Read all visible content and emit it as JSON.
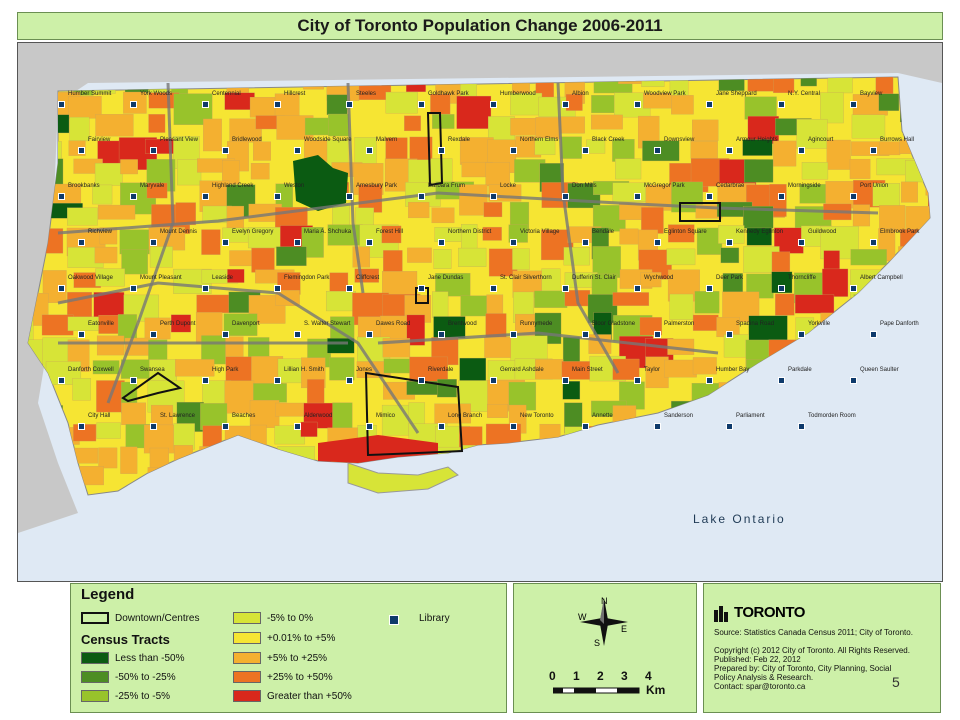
{
  "title": "City of Toronto Population Change 2006-2011",
  "lake_label": "Lake Ontario",
  "legend": {
    "heading": "Legend",
    "census_heading": "Census Tracts",
    "downtown": "Downtown/Centres",
    "library": "Library",
    "classes": [
      {
        "label": "Less than -50%",
        "color": "#0b5b12"
      },
      {
        "label": "-50% to -25%",
        "color": "#4d8d23"
      },
      {
        "label": "-25% to -5%",
        "color": "#98c32b"
      },
      {
        "label": "-5% to 0%",
        "color": "#d7e437"
      },
      {
        "label": "+0.01% to +5%",
        "color": "#f6e533"
      },
      {
        "label": "+5% to +25%",
        "color": "#f4b030"
      },
      {
        "label": "+25% to +50%",
        "color": "#ed7323"
      },
      {
        "label": "Greater than +50%",
        "color": "#d9281c"
      }
    ]
  },
  "compass": {
    "n": "N",
    "e": "E",
    "s": "S",
    "w": "W"
  },
  "scale": {
    "ticks": "0 1 2 3 4",
    "unit": "Km"
  },
  "info": {
    "brand": "TORONTO",
    "source": "Source: Statistics Canada Census 2011; City of Toronto.",
    "copyright": "Copyright (c) 2012 City of Toronto. All Rights Reserved.",
    "published": "Published: Feb 22, 2012",
    "prepared_1": "Prepared by: City of Toronto, City Planning, Social",
    "prepared_2": "Policy Analysis & Research.",
    "contact": "Contact: spar@toronto.ca"
  },
  "page_number": "5",
  "place_labels": [
    "Humber Summit",
    "York Woods",
    "Centennial",
    "Hillcrest",
    "Steeles",
    "Goldhawk Park",
    "Humberwood",
    "Albion",
    "Woodview Park",
    "Jane Sheppard",
    "N.Y. Central",
    "Bayview",
    "Fairview",
    "Pleasant View",
    "Bridlewood",
    "Woodside Square",
    "Malvern",
    "Rexdale",
    "Northern Elms",
    "Black Creek",
    "Downsview",
    "Armour Heights",
    "Agincourt",
    "Burrows Hall",
    "Brookbanks",
    "Maryvale",
    "Highland Creek",
    "Weston",
    "Amesbury Park",
    "Barbara Frum",
    "Locke",
    "Don Mills",
    "McGregor Park",
    "Cedarbrae",
    "Morningside",
    "Port Union",
    "Richview",
    "Mount Dennis",
    "Evelyn Gregory",
    "Maria A. Shchuka",
    "Forest Hill",
    "Northern District",
    "Victoria Village",
    "Bendale",
    "Eglinton Square",
    "Kennedy Eglinton",
    "Guildwood",
    "Elmbrook Park",
    "Oakwood Village",
    "Mount Pleasant",
    "Leaside",
    "Flemingdon Park",
    "Cliffcrest",
    "Jane Dundas",
    "St. Clair Silverthorn",
    "Dufferin St. Clair",
    "Wychwood",
    "Deer Park",
    "Thorncliffe",
    "Albert Campbell",
    "Eatonville",
    "Perth Dupont",
    "Davenport",
    "S. Walter Stewart",
    "Dawes Road",
    "Brentwood",
    "Runnymede",
    "Bloor Gladstone",
    "Palmerston",
    "Spadina Road",
    "Yorkville",
    "Pape Danforth",
    "Danforth Coxwell",
    "Swansea",
    "High Park",
    "Lillian H. Smith",
    "Jones",
    "Riverdale",
    "Gerrard Ashdale",
    "Main Street",
    "Taylor",
    "Humber Bay",
    "Parkdale",
    "Queen Saulter",
    "City Hall",
    "St. Lawrence",
    "Beaches",
    "Alderwood",
    "Mimico",
    "Long Branch",
    "New Toronto",
    "Annette",
    "Sanderson",
    "Parliament",
    "Todmorden Room"
  ]
}
